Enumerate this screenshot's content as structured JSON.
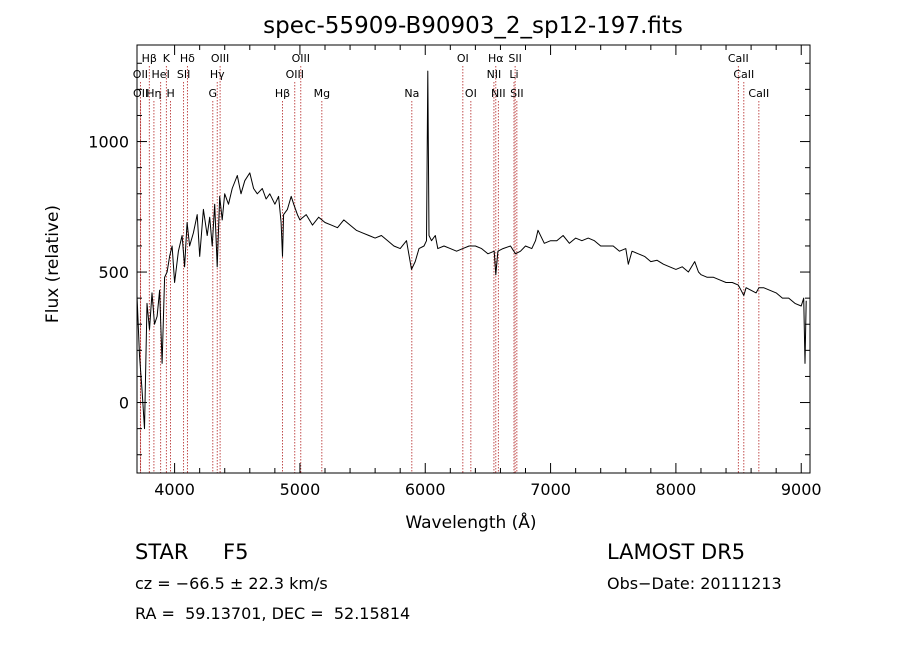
{
  "chart_data": {
    "type": "line",
    "title": "spec-55909-B90903_2_sp12-197.fits",
    "xlabel": "Wavelength (Å)",
    "ylabel": "Flux (relative)",
    "xlim": [
      3700,
      9070
    ],
    "ylim": [
      -270,
      1370
    ],
    "xticks": [
      4000,
      5000,
      6000,
      7000,
      8000,
      9000
    ],
    "yticks": [
      0,
      500,
      1000
    ],
    "grid": false,
    "series": [
      {
        "values_x": [
          3700,
          3720,
          3740,
          3760,
          3780,
          3800,
          3820,
          3840,
          3860,
          3880,
          3900,
          3920,
          3940,
          3960,
          3980,
          4000,
          4030,
          4060,
          4080,
          4100,
          4120,
          4150,
          4180,
          4200,
          4230,
          4260,
          4280,
          4300,
          4320,
          4340,
          4360,
          4380,
          4400,
          4430,
          4460,
          4500,
          4530,
          4560,
          4600,
          4630,
          4660,
          4700,
          4730,
          4760,
          4800,
          4830,
          4850,
          4861,
          4870,
          4900,
          4930,
          4950,
          4980,
          5000,
          5050,
          5100,
          5150,
          5200,
          5250,
          5300,
          5350,
          5400,
          5450,
          5500,
          5550,
          5600,
          5650,
          5700,
          5750,
          5800,
          5850,
          5890,
          5920,
          5950,
          5990,
          6010,
          6020,
          6030,
          6050,
          6080,
          6100,
          6150,
          6200,
          6250,
          6300,
          6350,
          6400,
          6450,
          6500,
          6550,
          6563,
          6580,
          6620,
          6680,
          6720,
          6760,
          6800,
          6850,
          6880,
          6900,
          6950,
          7000,
          7050,
          7100,
          7150,
          7200,
          7250,
          7300,
          7350,
          7400,
          7450,
          7500,
          7550,
          7600,
          7620,
          7650,
          7700,
          7750,
          7800,
          7850,
          7900,
          7950,
          8000,
          8050,
          8100,
          8150,
          8180,
          8200,
          8250,
          8300,
          8350,
          8400,
          8450,
          8498,
          8520,
          8542,
          8560,
          8600,
          8640,
          8662,
          8700,
          8750,
          8800,
          8850,
          8900,
          8950,
          9000,
          9020,
          9030,
          9040
        ],
        "values_y": [
          410,
          180,
          50,
          -100,
          380,
          280,
          420,
          300,
          330,
          430,
          150,
          480,
          500,
          560,
          600,
          460,
          580,
          640,
          520,
          690,
          600,
          650,
          720,
          560,
          740,
          640,
          710,
          600,
          760,
          520,
          790,
          700,
          800,
          760,
          820,
          870,
          800,
          850,
          880,
          820,
          800,
          820,
          780,
          800,
          760,
          790,
          690,
          560,
          720,
          740,
          790,
          760,
          720,
          700,
          720,
          680,
          710,
          690,
          680,
          670,
          700,
          680,
          660,
          650,
          640,
          630,
          640,
          620,
          600,
          590,
          620,
          510,
          540,
          590,
          600,
          620,
          1270,
          640,
          620,
          640,
          590,
          600,
          590,
          580,
          590,
          600,
          600,
          590,
          570,
          580,
          490,
          580,
          590,
          600,
          570,
          580,
          600,
          590,
          620,
          660,
          610,
          620,
          620,
          640,
          610,
          630,
          620,
          630,
          620,
          600,
          600,
          600,
          580,
          590,
          530,
          580,
          570,
          560,
          540,
          545,
          530,
          520,
          510,
          520,
          500,
          540,
          500,
          490,
          480,
          480,
          470,
          460,
          460,
          450,
          430,
          410,
          440,
          430,
          420,
          440,
          440,
          430,
          420,
          400,
          400,
          380,
          370,
          400,
          150,
          390
        ]
      }
    ],
    "lines": {
      "top": [
        {
          "label": "Hβ",
          "x": 3798
        },
        {
          "label": "K",
          "x": 3934
        },
        {
          "label": "Hδ",
          "x": 4102
        },
        {
          "label": "OIII",
          "x": 4363
        },
        {
          "label": "OIII",
          "x": 5007
        },
        {
          "label": "OI",
          "x": 6300
        },
        {
          "label": "Hα",
          "x": 6563
        },
        {
          "label": "SII",
          "x": 6717
        },
        {
          "label": "CaII",
          "x": 8498
        }
      ],
      "middle": [
        {
          "label": "OII",
          "x": 3727
        },
        {
          "label": "HeI",
          "x": 3889
        },
        {
          "label": "SII",
          "x": 4072
        },
        {
          "label": "Hγ",
          "x": 4340
        },
        {
          "label": "OIII",
          "x": 4959
        },
        {
          "label": "NII",
          "x": 6548
        },
        {
          "label": "Li",
          "x": 6708
        },
        {
          "label": "CaII",
          "x": 8542
        }
      ],
      "bottom": [
        {
          "label": "OII",
          "x": 3729
        },
        {
          "label": "Hη",
          "x": 3835
        },
        {
          "label": "H",
          "x": 3968
        },
        {
          "label": "G",
          "x": 4305
        },
        {
          "label": "Hβ",
          "x": 4861
        },
        {
          "label": "Mg",
          "x": 5175
        },
        {
          "label": "Na",
          "x": 5893
        },
        {
          "label": "OI",
          "x": 6364
        },
        {
          "label": "NII",
          "x": 6583
        },
        {
          "label": "SII",
          "x": 6731
        },
        {
          "label": "CaII",
          "x": 8662
        }
      ]
    }
  },
  "info": {
    "class": "STAR",
    "subclass": "F5",
    "survey": "LAMOST DR5",
    "cz": "cz = −66.5 ± 22.3 km/s",
    "obsdate": "Obs−Date: 20111213",
    "radec": "RA =  59.13701, DEC =  52.15814"
  },
  "colors": {
    "line_marker": "#b22222",
    "spectrum": "#000000"
  }
}
